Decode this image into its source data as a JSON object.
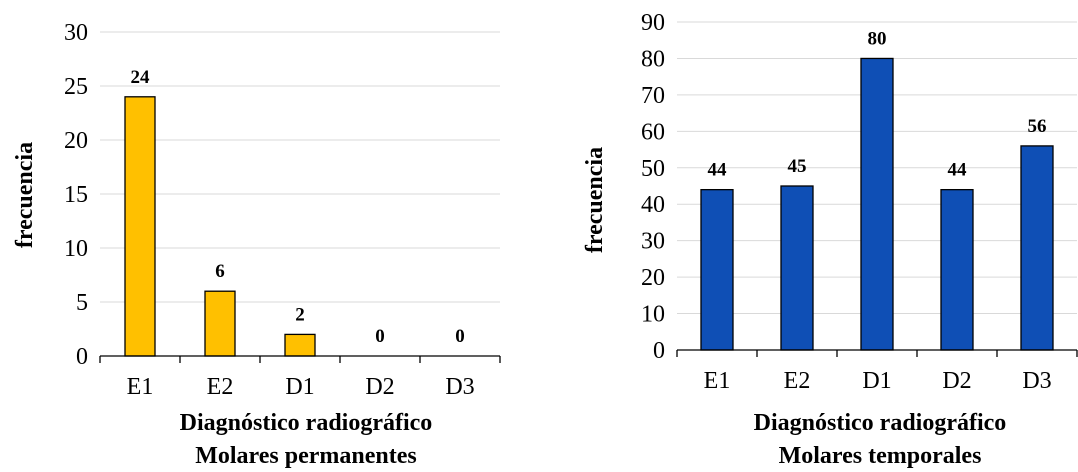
{
  "chart_data": [
    {
      "type": "bar",
      "categories": [
        "E1",
        "E2",
        "D1",
        "D2",
        "D3"
      ],
      "values": [
        24,
        6,
        2,
        0,
        0
      ],
      "ylabel": "frecuencia",
      "xlabel": [
        "Diagnóstico radiográfico",
        "Molares permanentes"
      ],
      "ylim": [
        0,
        30
      ],
      "yticks": [
        0,
        5,
        10,
        15,
        20,
        25,
        30
      ],
      "bar_color": "#ffc000",
      "grid": true,
      "data_labels": true
    },
    {
      "type": "bar",
      "categories": [
        "E1",
        "E2",
        "D1",
        "D2",
        "D3"
      ],
      "values": [
        44,
        45,
        80,
        44,
        56
      ],
      "ylabel": "frecuencia",
      "xlabel": [
        "Diagnóstico radiográfico",
        "Molares temporales"
      ],
      "ylim": [
        0,
        90
      ],
      "yticks": [
        0,
        10,
        20,
        30,
        40,
        50,
        60,
        70,
        80,
        90
      ],
      "bar_color": "#0f4fb5",
      "grid": true,
      "data_labels": true
    }
  ]
}
